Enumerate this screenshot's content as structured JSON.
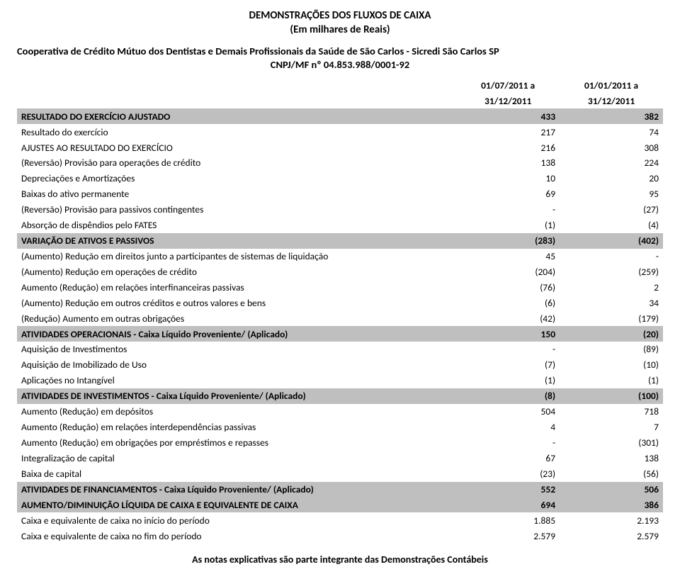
{
  "title": "DEMONSTRAÇÕES DOS FLUXOS DE CAIXA",
  "subtitle": "(Em milhares de Reais)",
  "org": "Cooperativa de Crédito Mútuo dos Dentistas e Demais Profissionais da Saúde de São Carlos - Sicredi São Carlos SP",
  "cnpj": "CNPJ/MF nº 04.853.988/0001-92",
  "colhead": {
    "c1a": "01/07/2011 a",
    "c1b": "31/12/2011",
    "c2a": "01/01/2011 a",
    "c2b": "31/12/2011"
  },
  "rows": [
    {
      "heading": true,
      "label": "RESULTADO DO EXERCÍCIO AJUSTADO",
      "c1": "433",
      "c2": "382"
    },
    {
      "label": "Resultado do exercício",
      "c1": "217",
      "c2": "74"
    },
    {
      "label": "AJUSTES AO RESULTADO DO EXERCÍCIO",
      "c1": "216",
      "c2": "308"
    },
    {
      "label": "(Reversão) Provisão para operações de crédito",
      "c1": "138",
      "c2": "224"
    },
    {
      "label": "Depreciações e Amortizações",
      "c1": "10",
      "c2": "20"
    },
    {
      "label": "Baixas do ativo permanente",
      "c1": "69",
      "c2": "95"
    },
    {
      "label": "(Reversão) Provisão para passivos contingentes",
      "c1": "-",
      "c2": "(27)"
    },
    {
      "label": "Absorção de dispêndios pelo FATES",
      "c1": "(1)",
      "c2": "(4)"
    },
    {
      "heading": true,
      "label": "VARIAÇÃO DE ATIVOS E PASSIVOS",
      "c1": "(283)",
      "c2": "(402)"
    },
    {
      "label": "(Aumento) Redução em direitos junto a participantes de sistemas de liquidação",
      "c1": "45",
      "c2": "-"
    },
    {
      "label": "(Aumento) Redução em operações de crédito",
      "c1": "(204)",
      "c2": "(259)"
    },
    {
      "label": "Aumento (Redução) em relações interfinanceiras passivas",
      "c1": "(76)",
      "c2": "2"
    },
    {
      "label": "(Aumento) Redução em outros créditos e outros valores e bens",
      "c1": "(6)",
      "c2": "34"
    },
    {
      "label": "(Redução) Aumento em outras obrigações",
      "c1": "(42)",
      "c2": "(179)"
    },
    {
      "heading": true,
      "label": "ATIVIDADES OPERACIONAIS - Caixa Líquido Proveniente/ (Aplicado)",
      "c1": "150",
      "c2": "(20)"
    },
    {
      "label": "Aquisição de Investimentos",
      "c1": "-",
      "c2": "(89)"
    },
    {
      "label": "Aquisição de Imobilizado de Uso",
      "c1": "(7)",
      "c2": "(10)"
    },
    {
      "label": "Aplicações no Intangível",
      "c1": "(1)",
      "c2": "(1)"
    },
    {
      "heading": true,
      "label": "ATIVIDADES DE INVESTIMENTOS - Caixa Líquido Proveniente/ (Aplicado)",
      "c1": "(8)",
      "c2": "(100)"
    },
    {
      "label": "Aumento (Redução) em depósitos",
      "c1": "504",
      "c2": "718"
    },
    {
      "label": "Aumento (Redução) em relações interdependências passivas",
      "c1": "4",
      "c2": "7"
    },
    {
      "label": "Aumento (Redução)  em obrigações por empréstimos e repasses",
      "c1": "-",
      "c2": "(301)"
    },
    {
      "label": "Integralização de capital",
      "c1": "67",
      "c2": "138"
    },
    {
      "label": "Baixa de capital",
      "c1": "(23)",
      "c2": "(56)"
    },
    {
      "heading": true,
      "label": "ATIVIDADES DE FINANCIAMENTOS - Caixa Líquido Proveniente/ (Aplicado)",
      "c1": "552",
      "c2": "506"
    },
    {
      "heading": true,
      "label": "AUMENTO/DIMINUIÇÃO LÍQUIDA DE CAIXA E EQUIVALENTE DE CAIXA",
      "c1": "694",
      "c2": "386"
    },
    {
      "label": "Caixa e equivalente de caixa no início do período",
      "c1": "1.885",
      "c2": "2.193"
    },
    {
      "label": "Caixa e equivalente de caixa no fim do período",
      "c1": "2.579",
      "c2": "2.579"
    }
  ],
  "footer": "As notas explicativas são parte integrante das Demonstrações Contábeis",
  "style": {
    "heading_bg": "#bfbfbf",
    "text_color": "#000000",
    "font_family": "Calibri",
    "font_size_body": 13.5,
    "font_size_title": 15,
    "font_size_footer": 14,
    "page_bg": "#ffffff",
    "col_widths_pct": [
      68,
      16,
      16
    ]
  }
}
